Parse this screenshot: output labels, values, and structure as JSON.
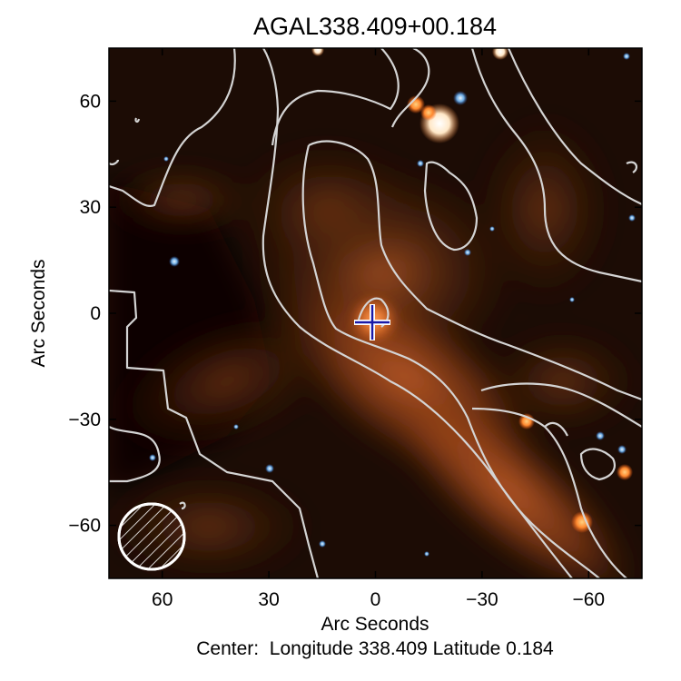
{
  "title": "AGAL338.409+00.184",
  "x_axis": {
    "label": "Arc Seconds",
    "ticks": [
      {
        "label": "60",
        "value": 60
      },
      {
        "label": "30",
        "value": 30
      },
      {
        "label": "0",
        "value": 0
      },
      {
        "label": "−30",
        "value": -30
      },
      {
        "label": "−60",
        "value": -60
      }
    ],
    "range": [
      75,
      -75
    ],
    "direction": "reversed"
  },
  "y_axis": {
    "label": "Arc Seconds",
    "ticks": [
      {
        "label": "60",
        "value": 60
      },
      {
        "label": "30",
        "value": 30
      },
      {
        "label": "0",
        "value": 0
      },
      {
        "label": "−30",
        "value": -30
      },
      {
        "label": "−60",
        "value": -60
      }
    ],
    "range": [
      -75,
      75
    ]
  },
  "center_caption": "Center:  Longitude 338.409 Latitude 0.184",
  "image": {
    "description_kind": "false-color infrared map with white intensity contours",
    "marker": {
      "symbol": "cross",
      "x": 0,
      "y": 0,
      "color": "#1a1aa8"
    },
    "beam_icon": "hatched-circle",
    "contour_color": "#d8d8d8",
    "background_color": "#1c0a04"
  }
}
